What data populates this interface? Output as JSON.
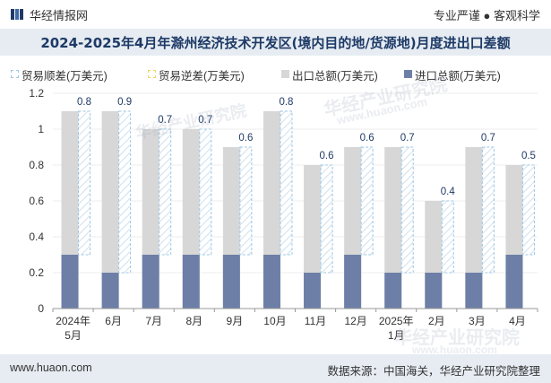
{
  "header": {
    "brand": "华经情报网",
    "slogan": "专业严谨 ● 客观科学"
  },
  "title": "2024-2025年4月年滁州经济技术开发区(境内目的地/货源地)月度进出口差额",
  "watermarks": {
    "cn": "华经产业研究院",
    "url": "www.huaon.com"
  },
  "footer": {
    "site": "www.huaon.com",
    "source": "数据来源：中国海关，华经产业研究院整理"
  },
  "colors": {
    "surplus": "#9ec8e6",
    "deficit": "#f2d36b",
    "export": "#d7d7d7",
    "import": "#6d7fa6",
    "title": "#1e3a66",
    "band": "#e6ecf2"
  },
  "chart_data": {
    "type": "bar",
    "title": "2024-2025年4月年滁州经济技术开发区(境内目的地/货源地)月度进出口差额",
    "categories": [
      "2024年\n5月",
      "6月",
      "7月",
      "8月",
      "9月",
      "10月",
      "11月",
      "12月",
      "2025年\n1月",
      "2月",
      "3月",
      "4月"
    ],
    "legend": [
      "贸易顺差(万美元)",
      "贸易逆差(万美元)",
      "出口总额(万美元)",
      "进口总额(万美元)"
    ],
    "series": [
      {
        "name": "贸易顺差(万美元)",
        "values": [
          0.8,
          0.9,
          0.7,
          0.7,
          0.6,
          0.8,
          0.6,
          0.6,
          0.7,
          0.4,
          0.7,
          0.5
        ]
      },
      {
        "name": "贸易逆差(万美元)",
        "values": [
          0,
          0,
          0,
          0,
          0,
          0,
          0,
          0,
          0,
          0,
          0,
          0
        ]
      },
      {
        "name": "出口总额(万美元)",
        "values": [
          1.1,
          1.1,
          1.0,
          1.0,
          0.9,
          1.1,
          0.8,
          0.9,
          0.9,
          0.6,
          0.9,
          0.8
        ]
      },
      {
        "name": "进口总额(万美元)",
        "values": [
          0.3,
          0.2,
          0.3,
          0.3,
          0.3,
          0.3,
          0.2,
          0.3,
          0.2,
          0.2,
          0.2,
          0.3
        ]
      }
    ],
    "data_labels": [
      "0.8",
      "0.9",
      "0.7",
      "0.7",
      "0.6",
      "0.8",
      "0.6",
      "0.6",
      "0.7",
      "0.4",
      "0.7",
      "0.5"
    ],
    "yticks": [
      "0",
      "0.2",
      "0.4",
      "0.6",
      "0.8",
      "1",
      "1.2"
    ],
    "ylim": [
      0,
      1.2
    ],
    "xlabel": "",
    "ylabel": "",
    "legend_position": "top"
  }
}
